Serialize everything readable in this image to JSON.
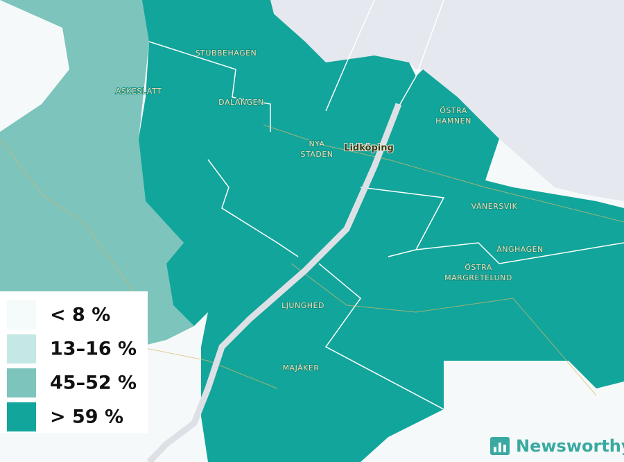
{
  "map": {
    "places": [
      {
        "lines": [
          "STUBBEHAGEN"
        ]
      },
      {
        "lines": [
          "ASKESLÄTT"
        ]
      },
      {
        "lines": [
          "DALÄNGEN"
        ]
      },
      {
        "lines": [
          "NYA",
          "STADEN"
        ]
      },
      {
        "lines": [
          "Lidköping"
        ]
      },
      {
        "lines": [
          "ÖSTRA",
          "HAMNEN"
        ]
      },
      {
        "lines": [
          "VÄNERSVIK"
        ]
      },
      {
        "lines": [
          "ÄNGHAGEN"
        ]
      },
      {
        "lines": [
          "ÖSTRA",
          "MARGRETELUND"
        ]
      },
      {
        "lines": [
          "LJUNGHED"
        ]
      },
      {
        "lines": [
          "MAJÄKER"
        ]
      }
    ],
    "legend": [
      {
        "label": "< 8 %",
        "color": "#f4fbfa"
      },
      {
        "label": "13–16 %",
        "color": "#c6e8e4"
      },
      {
        "label": "45–52 %",
        "color": "#7cc4bc"
      },
      {
        "label": "> 59 %",
        "color": "#12a59b"
      }
    ],
    "brand": "Newsworthy"
  }
}
